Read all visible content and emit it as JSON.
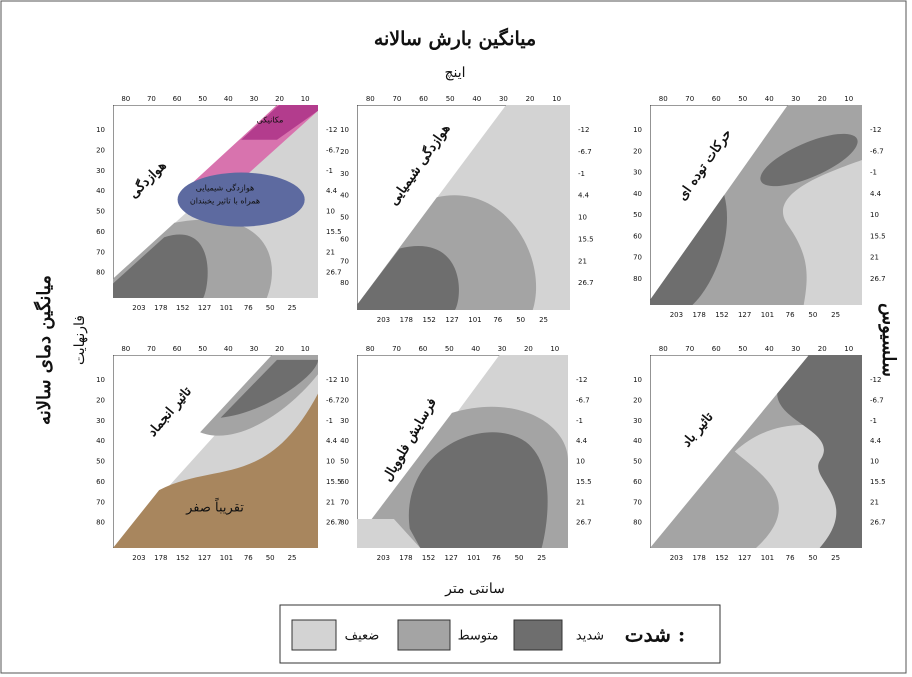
{
  "header": {
    "title": "میانگین بارش سالانه",
    "top_unit": "اینچ",
    "bottom_unit": "سانتی متر",
    "left_title": "میانگین دمای سالانه",
    "left_unit": "فارنهایت",
    "right_unit": "سلسیوس"
  },
  "axes": {
    "top_inches": [
      "80",
      "70",
      "60",
      "50",
      "40",
      "30",
      "20",
      "10"
    ],
    "left_fahrenheit": [
      "10",
      "20",
      "30",
      "40",
      "50",
      "60",
      "70",
      "80"
    ],
    "right_celsius": [
      "-12",
      "-6.7",
      "-1",
      "4.4",
      "10",
      "15.5",
      "21",
      "26.7"
    ],
    "bottom_cm": [
      "203",
      "178",
      "152",
      "127",
      "101",
      "76",
      "50",
      "25"
    ]
  },
  "panels": [
    {
      "label": "هوازدگی",
      "notes": [
        "مکانیکی",
        "هوازدگی شیمیایی",
        "همراه با تاثیر یخبندان"
      ]
    },
    {
      "label": "هوازدگی شیمیایی"
    },
    {
      "label": "حرکات توده ای"
    },
    {
      "label": "تاثیر انجماد",
      "notes": [
        "تقریباً صفر"
      ]
    },
    {
      "label": "فرسایش فلوویال"
    },
    {
      "label": "تاثیر باد"
    }
  ],
  "legend": {
    "title": "شدت :",
    "items": [
      "شدید",
      "متوسط",
      "ضعیف"
    ]
  }
}
